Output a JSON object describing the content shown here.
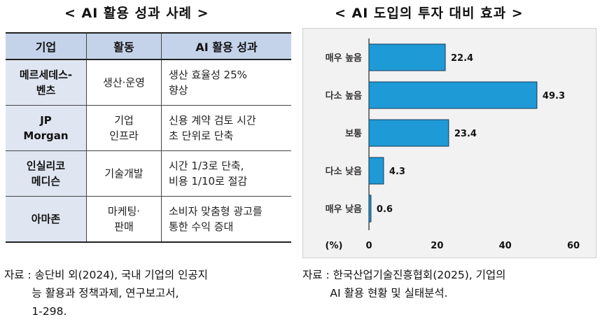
{
  "left": {
    "title": "< AI 활용 성과 사례 >",
    "headers": [
      "기업",
      "활동",
      "AI 활용 성과"
    ],
    "rows": [
      {
        "company": "메르세데스-\n벤츠",
        "activity": "생산·운영",
        "result": "생산 효율성 25%\n향상"
      },
      {
        "company": "JP\nMorgan",
        "activity": "기업\n인프라",
        "result": "신용 계약 검토 시간\n초 단위로 단축"
      },
      {
        "company": "인실리코\n메디슨",
        "activity": "기술개발",
        "result": "시간 1/3로 단축,\n비용 1/10로 절감"
      },
      {
        "company": "아마존",
        "activity": "마케팅·\n판매",
        "result": "소비자 맞춤형 광고를\n통한 수익 증대"
      }
    ],
    "source": "자료 : 송단비 외(2024), 국내 기업의 인공지\n        능 활용과 정책과제, 연구보고서,\n        1-298."
  },
  "right": {
    "title": "< AI 도입의 투자 대비 효과 >",
    "source": "자료 : 한국산업기술진흥협회(2025), 기업의\n        AI 활용 현황 및 실태분석."
  },
  "chart_data": {
    "type": "bar",
    "orientation": "horizontal",
    "categories": [
      "매우 높음",
      "다소 높음",
      "보통",
      "다소 낮음",
      "매우 낮음"
    ],
    "values": [
      22.4,
      49.3,
      23.4,
      4.3,
      0.6
    ],
    "value_labels": [
      "22.4",
      "49.3",
      "23.4",
      "4.3",
      "0.6"
    ],
    "xlim": [
      0,
      60
    ],
    "xticks": [
      "0",
      "20",
      "40",
      "60"
    ],
    "xlabel": "(%)",
    "bar_color": "#1e9ad6",
    "bar_edge_color": "#1a3a5a",
    "background": "#f2f2f2",
    "grid": false
  }
}
